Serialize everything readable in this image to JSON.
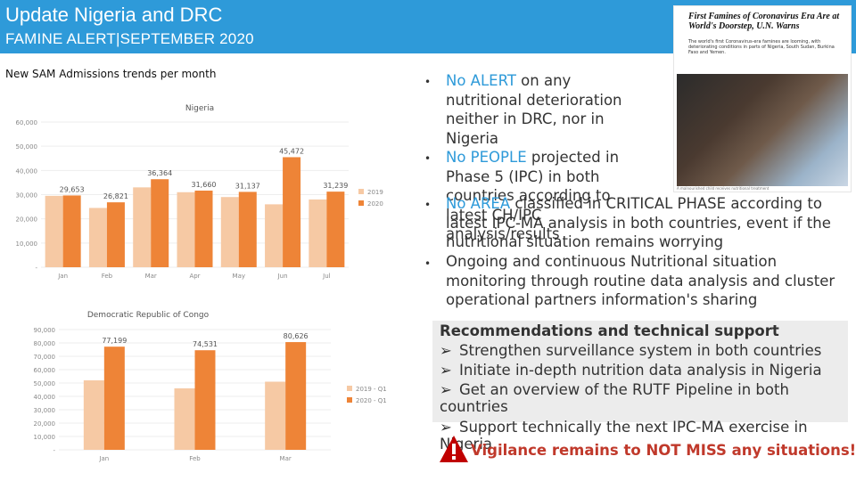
{
  "header": {
    "title": "Update Nigeria and DRC",
    "subtitle": "FAMINE ALERT|SEPTEMBER 2020"
  },
  "sam_title": "New SAM Admissions trends per month",
  "news": {
    "headline": "First Famines of Coronavirus Era Are at World's Doorstep, U.N. Warns",
    "body": "The world's first Coronavirus-era famines are looming, with deteriorating conditions in parts of Nigeria, South Sudan, Burkina Faso and Yemen.",
    "caption": "A malnourished child receives nutritional treatment"
  },
  "bullets": [
    {
      "highlight": "No ALERT",
      "rest": " on any nutritional deterioration neither in DRC, nor in Nigeria"
    },
    {
      "highlight": "No PEOPLE",
      "rest": " projected in Phase 5 (IPC) in both countries according to latest CH/IPC analysis/results"
    },
    {
      "highlight": "No AREA",
      "rest": " classified in CRITICAL PHASE according to latest IPC-MA analysis in both countries, event if the nutritional situation remains worrying"
    },
    {
      "highlight": "",
      "rest": "Ongoing and continuous Nutritional situation monitoring through routine data analysis and cluster operational partners information's sharing"
    }
  ],
  "recommendations": {
    "title": "Recommendations and technical support",
    "items": [
      "Strengthen surveillance system in both countries",
      "Initiate in-depth nutrition data analysis in Nigeria",
      "Get an overview of the RUTF Pipeline in both countries",
      "Support technically the next IPC-MA exercise in Nigeria"
    ]
  },
  "vigilance": "Vigilance remains to NOT MISS any situations!",
  "colors": {
    "header": "#2e9ad9",
    "light_series": "#f6c9a4",
    "dark_series": "#ee8437",
    "highlight": "#2e9ad9",
    "alert": "#c0392b"
  },
  "chart_data": [
    {
      "type": "bar",
      "title": "Nigeria",
      "categories": [
        "Jan",
        "Feb",
        "Mar",
        "Apr",
        "May",
        "Jun",
        "Jul"
      ],
      "yticks": [
        "-",
        "10,000",
        "20,000",
        "30,000",
        "40,000",
        "50,000",
        "60,000"
      ],
      "ylim": [
        0,
        60000
      ],
      "legend": "right",
      "series": [
        {
          "name": "2019",
          "values": [
            29500,
            24500,
            33000,
            31000,
            29000,
            26000,
            28000
          ]
        },
        {
          "name": "2020",
          "values": [
            29653,
            26821,
            36364,
            31660,
            31137,
            45472,
            31239
          ]
        }
      ],
      "data_labels": [
        "29,653",
        "26,821",
        "36,364",
        "31,660",
        "31,137",
        "45,472",
        "31,239"
      ]
    },
    {
      "type": "bar",
      "title": "Democratic Republic of Congo",
      "categories": [
        "Jan",
        "Feb",
        "Mar"
      ],
      "yticks": [
        "-",
        "10,000",
        "20,000",
        "30,000",
        "40,000",
        "50,000",
        "60,000",
        "70,000",
        "80,000",
        "90,000"
      ],
      "ylim": [
        0,
        90000
      ],
      "legend": "right",
      "series": [
        {
          "name": "2019 - Q1",
          "values": [
            52000,
            46000,
            51000
          ]
        },
        {
          "name": "2020 - Q1",
          "values": [
            77199,
            74531,
            80626
          ]
        }
      ],
      "data_labels": [
        "77,199",
        "74,531",
        "80,626"
      ]
    }
  ]
}
